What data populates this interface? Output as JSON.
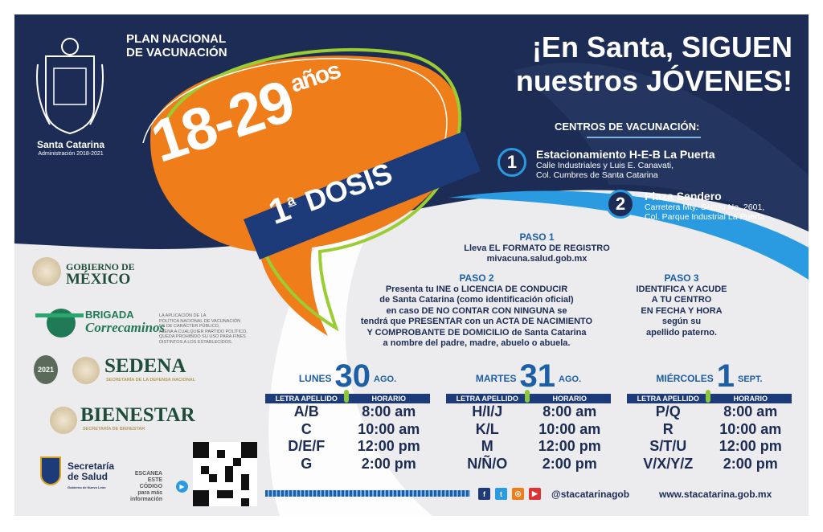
{
  "header": {
    "program": [
      "PLAN NACIONAL",
      "DE VACUNACIÓN"
    ],
    "municipality": "Santa Catarina",
    "administration": "Administración 2018-2021",
    "title": [
      "¡En Santa, SIGUEN",
      "nuestros JÓVENES!"
    ]
  },
  "bubble": {
    "ages": "18-29",
    "ages_unit": "años",
    "dose_num": "1",
    "dose_sup": "a",
    "dose_label": "DOSIS"
  },
  "centers": {
    "heading": "CENTROS DE VACUNACIÓN:",
    "items": [
      {
        "num": "1",
        "name": "Estacionamiento H-E-B La Puerta",
        "addr1": "Calle Industriales y Luis E. Canavati,",
        "addr2": "Col. Cumbres de Santa Catarina"
      },
      {
        "num": "2",
        "name": "Plaza Sendero",
        "addr1": "Carretera Mty.-Saltillo No. 2601,",
        "addr2": "Col. Parque Industrial La Puerta"
      }
    ]
  },
  "steps": [
    {
      "title": "PASO 1",
      "lines": [
        "Lleva EL FORMATO DE REGISTRO",
        "mivacuna.salud.gob.mx"
      ]
    },
    {
      "title": "PASO 2",
      "lines": [
        "Presenta tu INE o LICENCIA DE CONDUCIR",
        "de Santa Catarina (como identificación oficial)",
        "en caso DE NO CONTAR CON NINGUNA se",
        "tendrá que PRESENTAR con un ACTA DE NACIMIENTO",
        "Y COMPROBANTE DE DOMICILIO de Santa Catarina",
        "a nombre del padre, madre, abuelo o abuela."
      ]
    },
    {
      "title": "PASO 3",
      "lines": [
        "IDENTIFICA Y ACUDE",
        "A TU CENTRO",
        "EN FECHA Y HORA",
        "según su",
        "apellido paterno."
      ]
    }
  ],
  "schedule": {
    "col_letters": "LETRA APELLIDO",
    "col_time": "HORARIO",
    "days": [
      {
        "day": "LUNES",
        "num": "30",
        "month": "AGO.",
        "rows": [
          [
            "A/B",
            "8:00 am"
          ],
          [
            "C",
            "10:00 am"
          ],
          [
            "D/E/F",
            "12:00 pm"
          ],
          [
            "G",
            "2:00 pm"
          ]
        ]
      },
      {
        "day": "MARTES",
        "num": "31",
        "month": "AGO.",
        "rows": [
          [
            "H/I/J",
            "8:00 am"
          ],
          [
            "K/L",
            "10:00 am"
          ],
          [
            "M",
            "12:00 pm"
          ],
          [
            "N/Ñ/O",
            "2:00 pm"
          ]
        ]
      },
      {
        "day": "MIÉRCOLES",
        "num": "1",
        "month": "SEPT.",
        "rows": [
          [
            "P/Q",
            "8:00 am"
          ],
          [
            "R",
            "10:00 am"
          ],
          [
            "S/T/U",
            "12:00 pm"
          ],
          [
            "V/X/Y/Z",
            "2:00 pm"
          ]
        ]
      }
    ]
  },
  "logos": {
    "gob": [
      "GOBIERNO DE",
      "MÉXICO"
    ],
    "brigada": [
      "BRIGADA",
      "Correcaminos"
    ],
    "sedena": "SEDENA",
    "sedena_sub": "SECRETARÍA DE LA DEFENSA NACIONAL",
    "bienestar": "BIENESTAR",
    "bienestar_sub": "SECRETARÍA DE BIENESTAR",
    "salud": [
      "Secretaría",
      "de Salud"
    ],
    "salud_sub": "Gobierno de Nuevo León",
    "year_badge": "2021"
  },
  "disclaimer": [
    "LA APLICACIÓN DE LA",
    "POLÍTICA NACIONAL DE VACUNACIÓN",
    "ES DE CARÁCTER PÚBLICO,",
    "AJENA A CUALQUIER PARTIDO POLÍTICO,",
    "QUEDA PROHIBIDO SU USO PARA FINES",
    "DISTINTOS A LOS ESTABLECIDOS."
  ],
  "qr": {
    "lines": [
      "ESCANEA",
      "ESTE",
      "CÓDIGO",
      "para más",
      "información"
    ]
  },
  "footer": {
    "handle": "@stacatarinagob",
    "website": "www.stacatarina.gob.mx",
    "social": [
      "facebook-icon",
      "twitter-icon",
      "instagram-icon",
      "youtube-icon"
    ]
  },
  "colors": {
    "navy": "#1c2c55",
    "orange": "#ef7d1a",
    "lime": "#9acd32",
    "blue": "#1d5fa6",
    "cyan": "#2a9be0"
  }
}
